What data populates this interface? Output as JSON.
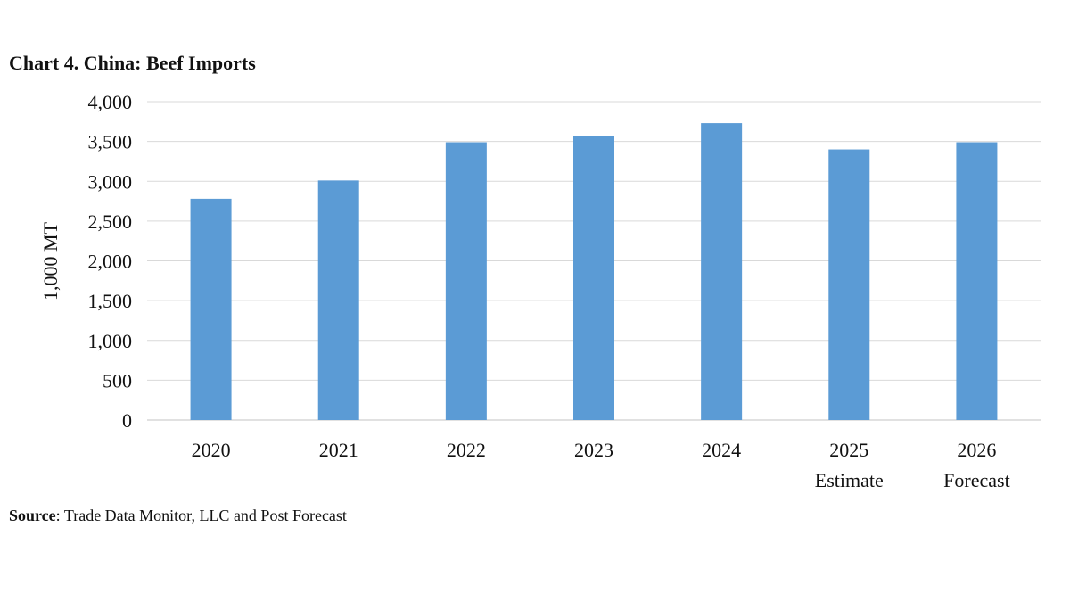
{
  "chart_data": {
    "type": "bar",
    "title": "Chart 4. China: Beef Imports",
    "xlabel": "",
    "ylabel": "1,000 MT",
    "categories": [
      [
        "2020"
      ],
      [
        "2021"
      ],
      [
        "2022"
      ],
      [
        "2023"
      ],
      [
        "2024"
      ],
      [
        "2025",
        "Estimate"
      ],
      [
        "2026",
        "Forecast"
      ]
    ],
    "values": [
      2780,
      3010,
      3490,
      3570,
      3730,
      3400,
      3490
    ],
    "ylim": [
      0,
      4000
    ],
    "yticks": [
      0,
      500,
      1000,
      1500,
      2000,
      2500,
      3000,
      3500,
      4000
    ],
    "ytick_labels": [
      "0",
      "500",
      "1,000",
      "1,500",
      "2,000",
      "2,500",
      "3,000",
      "3,500",
      "4,000"
    ],
    "grid": true,
    "legend": "none",
    "bar_color": "#5b9bd5",
    "grid_color": "#d9d9d9"
  },
  "source": {
    "label": "Source",
    "text": ": Trade Data Monitor, LLC and Post Forecast"
  }
}
